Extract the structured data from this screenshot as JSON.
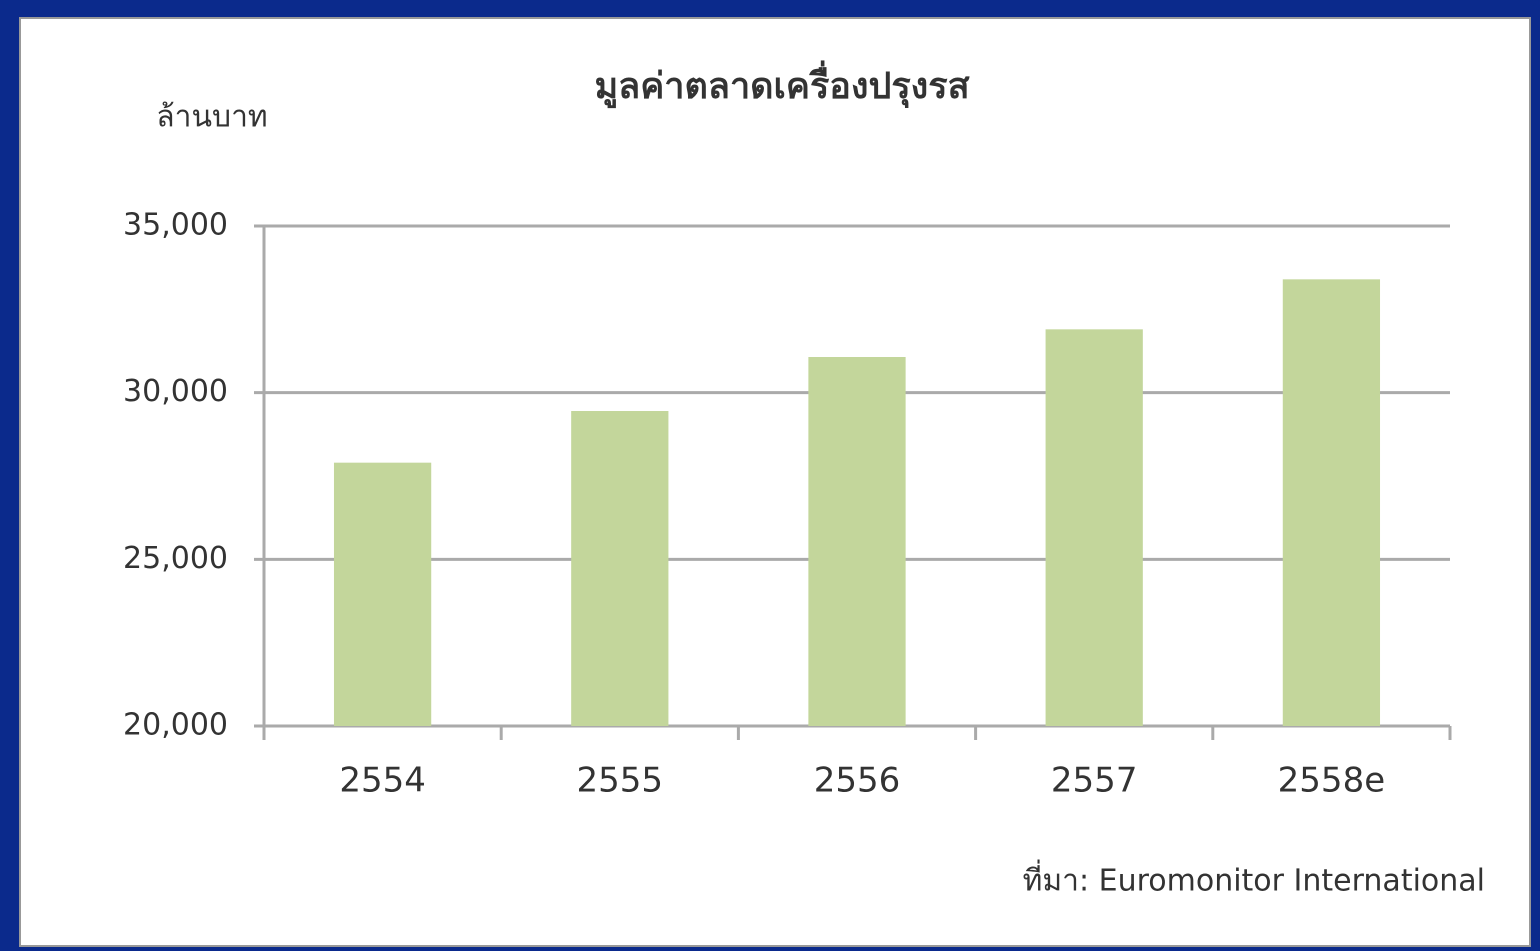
{
  "chart_data": {
    "type": "bar",
    "title": "มูลค่าตลาดเครื่องปรุงรส",
    "y_axis_label": "ล้านบาท",
    "source": "ที่มา: Euromonitor International",
    "categories": [
      "2554",
      "2555",
      "2556",
      "2557",
      "2558e"
    ],
    "values": [
      27900,
      29450,
      31070,
      31900,
      33400
    ],
    "color": "#c3d69b",
    "ylim": [
      20000,
      35000
    ],
    "yticks": [
      {
        "value": 20000,
        "label": "20,000"
      },
      {
        "value": 25000,
        "label": "25,000"
      },
      {
        "value": 30000,
        "label": "30,000"
      },
      {
        "value": 35000,
        "label": "35,000"
      }
    ],
    "grid": true
  }
}
